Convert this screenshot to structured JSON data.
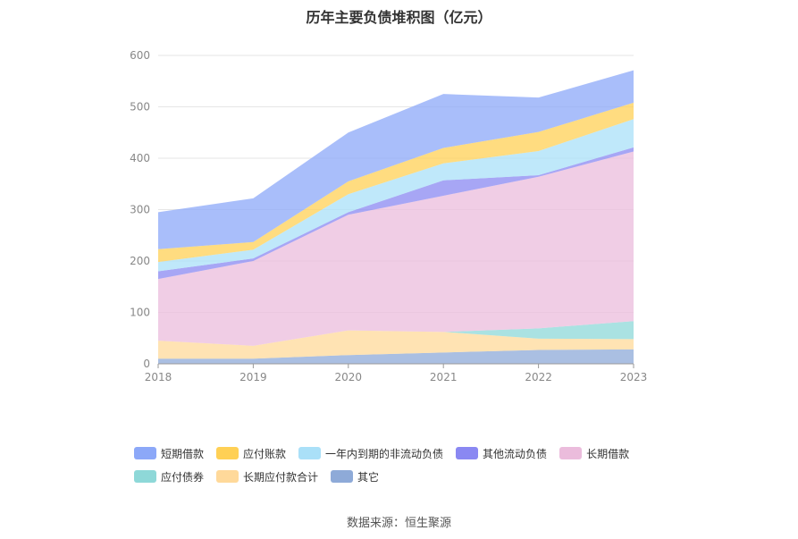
{
  "chart_data": {
    "type": "area",
    "stacked": true,
    "title": "历年主要负债堆积图（亿元）",
    "x": [
      "2018",
      "2019",
      "2020",
      "2021",
      "2022",
      "2023"
    ],
    "ylim": [
      0,
      600
    ],
    "yticks": [
      0,
      100,
      200,
      300,
      400,
      500,
      600
    ],
    "grid": true,
    "legend_position": "bottom",
    "series": [
      {
        "name": "其它",
        "color": "#8eaad8",
        "values": [
          10,
          10,
          17,
          22,
          27,
          28
        ]
      },
      {
        "name": "长期应付款合计",
        "color": "#ffd99a",
        "values": [
          35,
          25,
          48,
          40,
          22,
          20
        ]
      },
      {
        "name": "应付债券",
        "color": "#8ed8d8",
        "values": [
          0,
          0,
          0,
          0,
          20,
          35
        ]
      },
      {
        "name": "长期借款",
        "color": "#ebbcdc",
        "values": [
          120,
          165,
          225,
          265,
          295,
          330
        ]
      },
      {
        "name": "其他流动负债",
        "color": "#8a88f2",
        "values": [
          15,
          5,
          5,
          30,
          3,
          8
        ]
      },
      {
        "name": "一年内到期的非流动负债",
        "color": "#aae0f8",
        "values": [
          18,
          17,
          35,
          33,
          47,
          55
        ]
      },
      {
        "name": "应付账款",
        "color": "#ffd055",
        "values": [
          25,
          15,
          25,
          30,
          37,
          32
        ]
      },
      {
        "name": "短期借款",
        "color": "#8ca8f8",
        "values": [
          72,
          85,
          95,
          105,
          67,
          63
        ]
      }
    ],
    "legend_rows": [
      [
        "短期借款",
        "应付账款",
        "一年内到期的非流动负债",
        "其他流动负债",
        "长期借款"
      ],
      [
        "应付债券",
        "长期应付款合计",
        "其它"
      ]
    ]
  },
  "source": "数据来源：恒生聚源"
}
